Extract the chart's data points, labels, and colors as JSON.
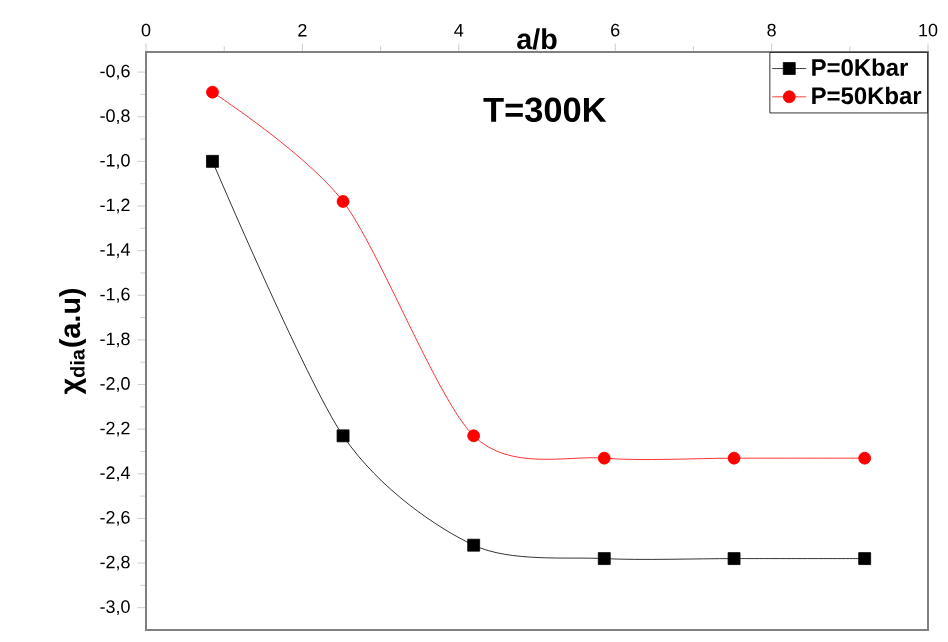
{
  "chart_data": {
    "type": "line",
    "xlabel": "a/b",
    "ylabel": "χ$_{dia}$(a.u)",
    "annotations": [
      "T=300K"
    ],
    "xlim": [
      0,
      10
    ],
    "xticks": [
      0,
      2,
      4,
      6,
      8,
      10
    ],
    "ylim": [
      -3.1,
      -0.51
    ],
    "yticks": [
      {
        "value": -0.6,
        "label": "-0,6"
      },
      {
        "value": -0.8,
        "label": "-0,8"
      },
      {
        "value": -1.0,
        "label": "-1,0"
      },
      {
        "value": -1.2,
        "label": "-1,2"
      },
      {
        "value": -1.4,
        "label": "-1,4"
      },
      {
        "value": -1.6,
        "label": "-1,6"
      },
      {
        "value": -1.8,
        "label": "-1,8"
      },
      {
        "value": -2.0,
        "label": "-2,0"
      },
      {
        "value": -2.2,
        "label": "-2,2"
      },
      {
        "value": -2.4,
        "label": "-2,4"
      },
      {
        "value": -2.6,
        "label": "-2,6"
      },
      {
        "value": -2.8,
        "label": "-2,8"
      },
      {
        "value": -3.0,
        "label": "-3,0"
      }
    ],
    "x": [
      0.85,
      2.52,
      4.19,
      5.86,
      7.52,
      9.19
    ],
    "series": [
      {
        "name": "P=0Kbar",
        "color": "#000000",
        "marker": "square",
        "values": [
          -1.0,
          -2.23,
          -2.72,
          -2.78,
          -2.78,
          -2.78
        ]
      },
      {
        "name": "P=50Kbar",
        "color": "#ff0000",
        "marker": "circle",
        "values": [
          -0.69,
          -1.18,
          -2.23,
          -2.33,
          -2.33,
          -2.33
        ]
      }
    ],
    "legend": "top right",
    "grid": false,
    "line_style": "solid"
  }
}
